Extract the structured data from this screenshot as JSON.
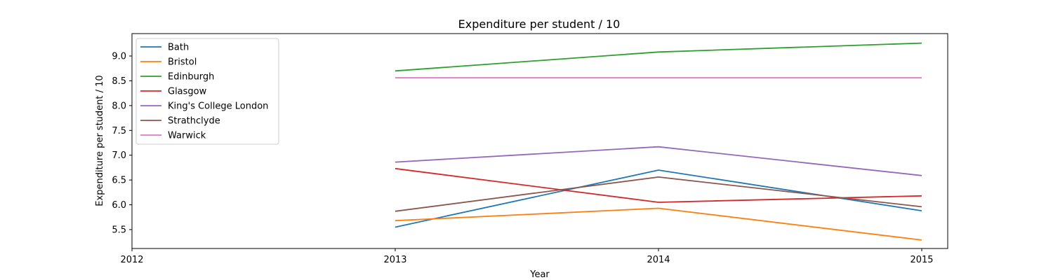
{
  "chart_data": {
    "type": "line",
    "title": "Expenditure per student / 10",
    "xlabel": "Year",
    "ylabel": "Expenditure per student / 10",
    "x": [
      2013,
      2014,
      2015
    ],
    "xticks": [
      "2012",
      "2013",
      "2014",
      "2015"
    ],
    "xlim": [
      2012,
      2015
    ],
    "yticks": [
      "5.5",
      "6.0",
      "6.5",
      "7.0",
      "7.5",
      "8.0",
      "8.5",
      "9.0"
    ],
    "ylim": [
      5.1,
      9.45
    ],
    "grid": false,
    "legend_position": "upper-left",
    "series": [
      {
        "name": "Bath",
        "color": "#1f77b4",
        "values": [
          5.55,
          6.7,
          5.88
        ]
      },
      {
        "name": "Bristol",
        "color": "#ff7f0e",
        "values": [
          5.68,
          5.93,
          5.29
        ]
      },
      {
        "name": "Edinburgh",
        "color": "#2ca02c",
        "values": [
          8.7,
          9.08,
          9.26
        ]
      },
      {
        "name": "Glasgow",
        "color": "#d62728",
        "values": [
          6.73,
          6.05,
          6.18
        ]
      },
      {
        "name": "King's College London",
        "color": "#9467bd",
        "values": [
          6.86,
          7.17,
          6.59
        ]
      },
      {
        "name": "Strathclyde",
        "color": "#8c564b",
        "values": [
          5.87,
          6.56,
          5.96
        ]
      },
      {
        "name": "Warwick",
        "color": "#e377c2",
        "values": [
          8.56,
          8.56,
          8.56
        ]
      }
    ]
  }
}
